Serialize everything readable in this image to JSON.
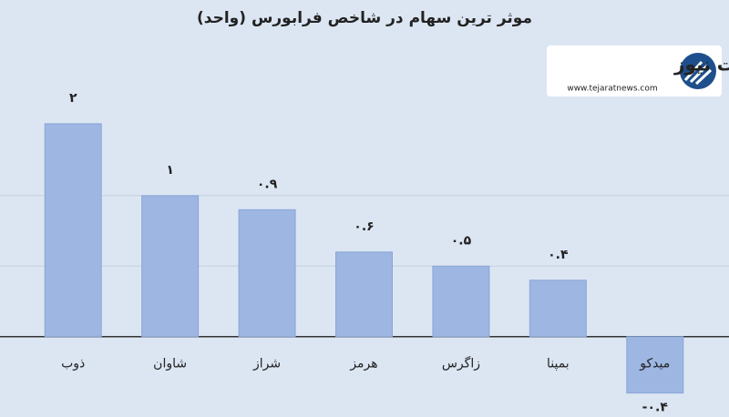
{
  "chart_data": {
    "type": "bar",
    "title": "موثر ترین سهام در شاخص فرابورس (واحد)",
    "logo": {
      "name": "تجارت نیوز",
      "url": "www.tejaratnews.com"
    },
    "categories": [
      "ذوب",
      "شاوان",
      "شراز",
      "هرمز",
      "زاگرس",
      "بمپنا",
      "میدکو"
    ],
    "values": [
      1.51,
      1,
      0.9,
      0.6,
      0.5,
      0.4,
      -0.4
    ],
    "value_labels": [
      "۲",
      "۱",
      "۰.۹",
      "۰.۶",
      "۰.۵",
      "۰.۴",
      "-۰.۴"
    ],
    "color": "#9db6e2",
    "ylim": [
      -0.57,
      2
    ],
    "yticks": [
      0,
      0.5,
      1
    ],
    "grid": true
  }
}
